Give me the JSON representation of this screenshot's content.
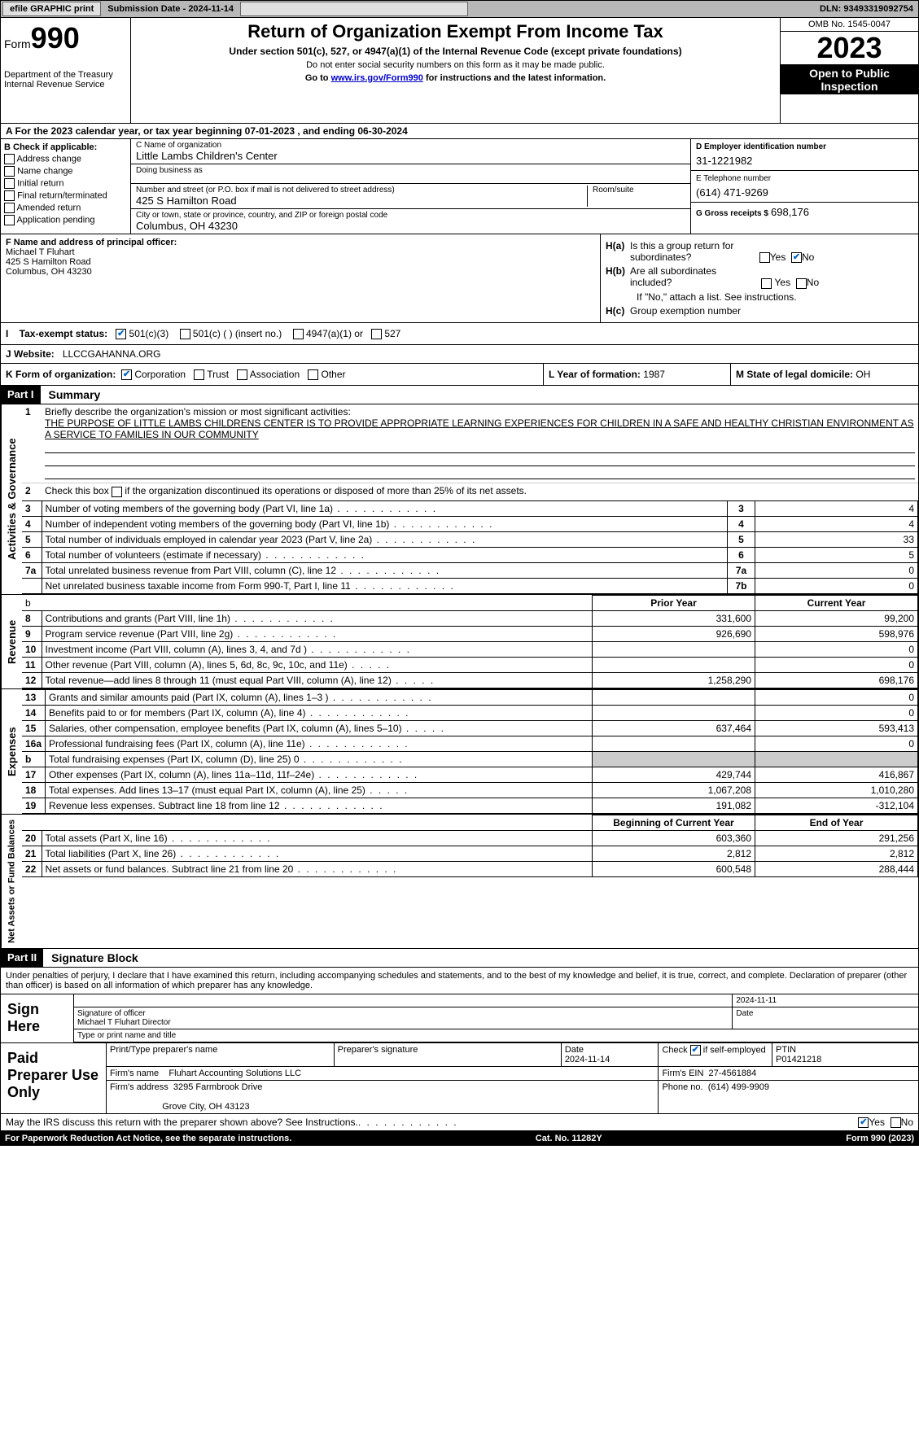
{
  "colors": {
    "page_bg": "#ffffff",
    "header_black": "#000000",
    "grey_cell": "#cccccc",
    "topbar_bg": "#b8b8b8",
    "link": "#0000cc",
    "check": "#0066cc"
  },
  "topbar": {
    "efile": "efile GRAPHIC print",
    "submission": "Submission Date - 2024-11-14",
    "dln": "DLN: 93493319092754"
  },
  "header": {
    "form_label": "Form",
    "form_num": "990",
    "dept": "Department of the Treasury",
    "irs": "Internal Revenue Service",
    "title": "Return of Organization Exempt From Income Tax",
    "sub": "Under section 501(c), 527, or 4947(a)(1) of the Internal Revenue Code (except private foundations)",
    "note1": "Do not enter social security numbers on this form as it may be made public.",
    "note2_pre": "Go to ",
    "note2_link": "www.irs.gov/Form990",
    "note2_post": " for instructions and the latest information.",
    "omb": "OMB No. 1545-0047",
    "year": "2023",
    "open": "Open to Public Inspection"
  },
  "tax_year": "A For the 2023 calendar year, or tax year beginning 07-01-2023    , and ending 06-30-2024",
  "box_b": {
    "label": "B Check if applicable:",
    "items": [
      "Address change",
      "Name change",
      "Initial return",
      "Final return/terminated",
      "Amended return",
      "Application pending"
    ]
  },
  "box_c": {
    "label_name": "C Name of organization",
    "name": "Little Lambs Children's Center",
    "dba_label": "Doing business as",
    "dba": "",
    "street_label": "Number and street (or P.O. box if mail is not delivered to street address)",
    "room_label": "Room/suite",
    "street": "425 S Hamilton Road",
    "city_label": "City or town, state or province, country, and ZIP or foreign postal code",
    "city": "Columbus, OH  43230"
  },
  "box_d": {
    "label": "D Employer identification number",
    "ein": "31-1221982"
  },
  "box_e": {
    "label": "E Telephone number",
    "phone": "(614) 471-9269"
  },
  "box_g": {
    "label": "G Gross receipts $",
    "amount": "698,176"
  },
  "box_f": {
    "label": "F  Name and address of principal officer:",
    "name": "Michael T Fluhart",
    "street": "425 S Hamilton Road",
    "city": "Columbus, OH  43230"
  },
  "box_h": {
    "ha_label": "H(a)  Is this a group return for subordinates?",
    "hb_label": "H(b)  Are all subordinates included?",
    "hb_note": "If \"No,\" attach a list. See instructions.",
    "hc_label": "H(c)  Group exemption number",
    "yes": "Yes",
    "no": "No"
  },
  "box_i": {
    "label": "I    Tax-exempt status:",
    "o1": "501(c)(3)",
    "o2": "501(c) (  ) (insert no.)",
    "o3": "4947(a)(1) or",
    "o4": "527"
  },
  "box_j": {
    "label": "J   Website:",
    "value": "LLCCGAHANNA.ORG"
  },
  "box_k": {
    "label": "K Form of organization:",
    "o1": "Corporation",
    "o2": "Trust",
    "o3": "Association",
    "o4": "Other"
  },
  "box_l": {
    "label": "L Year of formation:",
    "value": "1987"
  },
  "box_m": {
    "label": "M State of legal domicile:",
    "value": "OH"
  },
  "part1": {
    "header": "Part I",
    "title": "Summary"
  },
  "activities": {
    "side": "Activities & Governance",
    "l1_label": "1",
    "l1_txt": "Briefly describe the organization's mission or most significant activities:",
    "l1_val": "THE PURPOSE OF LITTLE LAMBS CHILDRENS CENTER IS TO PROVIDE APPROPRIATE LEARNING EXPERIENCES FOR CHILDREN IN A SAFE AND HEALTHY CHRISTIAN ENVIRONMENT AS A SERVICE TO FAMILIES IN OUR COMMUNITY",
    "l2_label": "2",
    "l2_txt": "Check this box        if the organization discontinued its operations or disposed of more than 25% of its net assets.",
    "rows": [
      {
        "n": "3",
        "txt": "Number of voting members of the governing body (Part VI, line 1a)",
        "ref": "3",
        "val": "4"
      },
      {
        "n": "4",
        "txt": "Number of independent voting members of the governing body (Part VI, line 1b)",
        "ref": "4",
        "val": "4"
      },
      {
        "n": "5",
        "txt": "Total number of individuals employed in calendar year 2023 (Part V, line 2a)",
        "ref": "5",
        "val": "33"
      },
      {
        "n": "6",
        "txt": "Total number of volunteers (estimate if necessary)",
        "ref": "6",
        "val": "5"
      },
      {
        "n": "7a",
        "txt": "Total unrelated business revenue from Part VIII, column (C), line 12",
        "ref": "7a",
        "val": "0"
      },
      {
        "n": "",
        "txt": "Net unrelated business taxable income from Form 990-T, Part I, line 11",
        "ref": "7b",
        "val": "0"
      }
    ]
  },
  "revenue": {
    "side": "Revenue",
    "header_prior": "Prior Year",
    "header_current": "Current Year",
    "rows": [
      {
        "n": "8",
        "txt": "Contributions and grants (Part VIII, line 1h)",
        "prior": "331,600",
        "cur": "99,200"
      },
      {
        "n": "9",
        "txt": "Program service revenue (Part VIII, line 2g)",
        "prior": "926,690",
        "cur": "598,976"
      },
      {
        "n": "10",
        "txt": "Investment income (Part VIII, column (A), lines 3, 4, and 7d )",
        "prior": "",
        "cur": "0"
      },
      {
        "n": "11",
        "txt": "Other revenue (Part VIII, column (A), lines 5, 6d, 8c, 9c, 10c, and 11e)",
        "prior": "",
        "cur": "0"
      },
      {
        "n": "12",
        "txt": "Total revenue—add lines 8 through 11 (must equal Part VIII, column (A), line 12)",
        "prior": "1,258,290",
        "cur": "698,176"
      }
    ]
  },
  "expenses": {
    "side": "Expenses",
    "rows": [
      {
        "n": "13",
        "txt": "Grants and similar amounts paid (Part IX, column (A), lines 1–3 )",
        "prior": "",
        "cur": "0"
      },
      {
        "n": "14",
        "txt": "Benefits paid to or for members (Part IX, column (A), line 4)",
        "prior": "",
        "cur": "0"
      },
      {
        "n": "15",
        "txt": "Salaries, other compensation, employee benefits (Part IX, column (A), lines 5–10)",
        "prior": "637,464",
        "cur": "593,413"
      },
      {
        "n": "16a",
        "txt": "Professional fundraising fees (Part IX, column (A), line 11e)",
        "prior": "",
        "cur": "0"
      },
      {
        "n": "b",
        "txt": "Total fundraising expenses (Part IX, column (D), line 25) 0",
        "prior": "GREY",
        "cur": "GREY"
      },
      {
        "n": "17",
        "txt": "Other expenses (Part IX, column (A), lines 11a–11d, 11f–24e)",
        "prior": "429,744",
        "cur": "416,867"
      },
      {
        "n": "18",
        "txt": "Total expenses. Add lines 13–17 (must equal Part IX, column (A), line 25)",
        "prior": "1,067,208",
        "cur": "1,010,280"
      },
      {
        "n": "19",
        "txt": "Revenue less expenses. Subtract line 18 from line 12",
        "prior": "191,082",
        "cur": "-312,104"
      }
    ]
  },
  "netassets": {
    "side": "Net Assets or Fund Balances",
    "header_begin": "Beginning of Current Year",
    "header_end": "End of Year",
    "rows": [
      {
        "n": "20",
        "txt": "Total assets (Part X, line 16)",
        "prior": "603,360",
        "cur": "291,256"
      },
      {
        "n": "21",
        "txt": "Total liabilities (Part X, line 26)",
        "prior": "2,812",
        "cur": "2,812"
      },
      {
        "n": "22",
        "txt": "Net assets or fund balances. Subtract line 21 from line 20",
        "prior": "600,548",
        "cur": "288,444"
      }
    ]
  },
  "part2": {
    "header": "Part II",
    "title": "Signature Block",
    "declaration": "Under penalties of perjury, I declare that I have examined this return, including accompanying schedules and statements, and to the best of my knowledge and belief, it is true, correct, and complete. Declaration of preparer (other than officer) is based on all information of which preparer has any knowledge."
  },
  "sign_here": {
    "label": "Sign Here",
    "sig_label": "Signature of officer",
    "date_label": "Date",
    "date": "2024-11-11",
    "name": "Michael T Fluhart  Director",
    "type_label": "Type or print name and title"
  },
  "paid_prep": {
    "label": "Paid Preparer Use Only",
    "print_label": "Print/Type preparer's name",
    "sig_label": "Preparer's signature",
    "date_label": "Date",
    "date": "2024-11-14",
    "check_label": "Check",
    "self_emp": "if self-employed",
    "ptin_label": "PTIN",
    "ptin": "P01421218",
    "firm_name_label": "Firm's name",
    "firm_name": "Fluhart Accounting Solutions LLC",
    "firm_ein_label": "Firm's EIN",
    "firm_ein": "27-4561884",
    "firm_addr_label": "Firm's address",
    "firm_addr1": "3295 Farmbrook Drive",
    "firm_addr2": "Grove City, OH  43123",
    "phone_label": "Phone no.",
    "phone": "(614) 499-9909"
  },
  "footer": {
    "discuss": "May the IRS discuss this return with the preparer shown above? See Instructions.",
    "yes": "Yes",
    "no": "No",
    "paperwork": "For Paperwork Reduction Act Notice, see the separate instructions.",
    "cat": "Cat. No. 11282Y",
    "form": "Form 990 (2023)"
  }
}
